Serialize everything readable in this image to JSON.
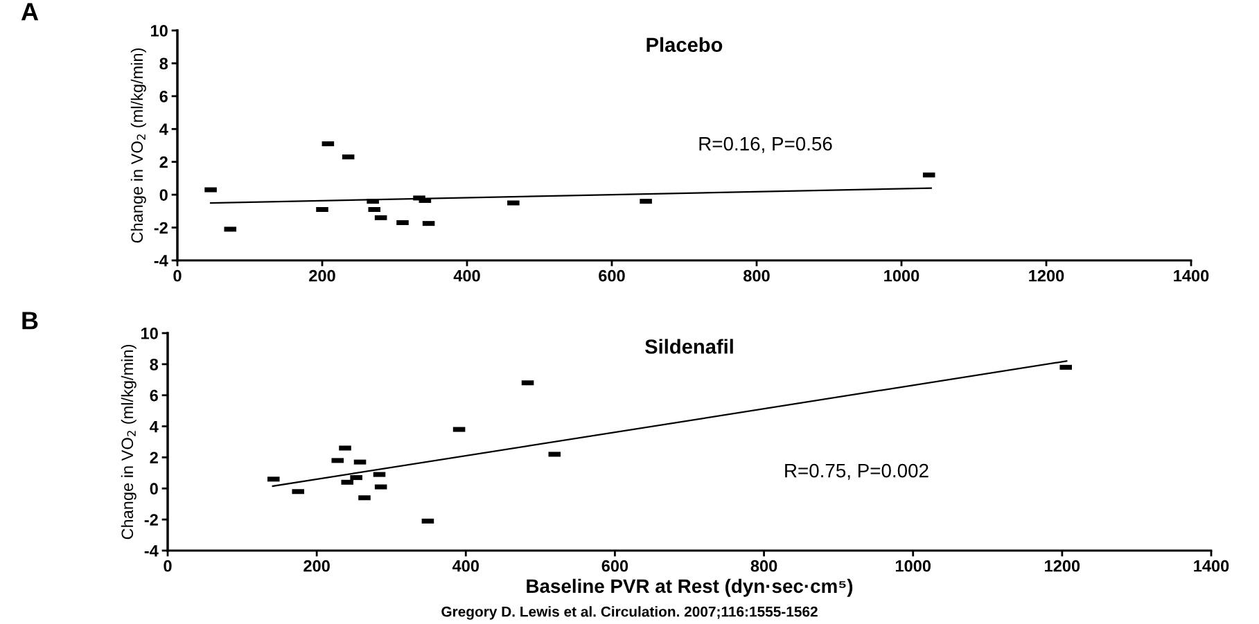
{
  "chart_data": [
    {
      "type": "scatter",
      "title": "Placebo",
      "ylabel": "Change in VO$_{2}$ (ml/kg/min)",
      "annotations": [
        "A",
        "R=0.16, P=0.56"
      ],
      "xlim": [
        0,
        1400
      ],
      "xticks": [
        0,
        200,
        400,
        600,
        800,
        1000,
        1200,
        1400
      ],
      "ylim": [
        -4,
        10
      ],
      "yticks": [
        -4,
        -2,
        0,
        2,
        4,
        6,
        8,
        10
      ],
      "grid": false,
      "series": [
        {
          "marker": "square",
          "color": "#000000",
          "x": [
            46,
            73,
            200,
            208,
            236,
            270,
            272,
            281,
            311,
            334,
            342,
            347,
            464,
            647,
            1038
          ],
          "values": [
            0.3,
            -2.1,
            -0.9,
            3.1,
            2.3,
            -0.4,
            -0.9,
            -1.4,
            -1.7,
            -0.2,
            -0.35,
            -1.75,
            -0.5,
            -0.4,
            1.2
          ]
        },
        {
          "type": "line",
          "color": "#000000",
          "x": [
            46,
            1041
          ],
          "values": [
            -0.5,
            0.4
          ]
        }
      ]
    },
    {
      "type": "scatter",
      "title": "Sildenafil",
      "xlabel": "Baseline PVR at Rest (dyn·sec·cm⁵)",
      "ylabel": "Change in VO$_{2}$ (ml/kg/min)",
      "annotations": [
        "B",
        "R=0.75, P=0.002",
        "Gregory D. Lewis et al. Circulation. 2007;116:1555-1562"
      ],
      "xlim": [
        0,
        1400
      ],
      "xticks": [
        0,
        200,
        400,
        600,
        800,
        1000,
        1200,
        1400
      ],
      "ylim": [
        -4,
        10
      ],
      "yticks": [
        -4,
        -2,
        0,
        2,
        4,
        6,
        8,
        10
      ],
      "grid": false,
      "series": [
        {
          "marker": "square",
          "color": "#000000",
          "x": [
            142,
            175,
            228,
            238,
            241,
            253,
            258,
            264,
            284,
            286,
            349,
            391,
            483,
            519,
            1205
          ],
          "values": [
            0.6,
            -0.2,
            1.8,
            2.6,
            0.4,
            0.7,
            1.7,
            -0.6,
            0.9,
            0.1,
            -2.1,
            3.8,
            6.8,
            2.2,
            7.8
          ]
        },
        {
          "type": "line",
          "color": "#000000",
          "x": [
            141,
            1206
          ],
          "values": [
            0.15,
            8.2
          ]
        }
      ]
    }
  ]
}
